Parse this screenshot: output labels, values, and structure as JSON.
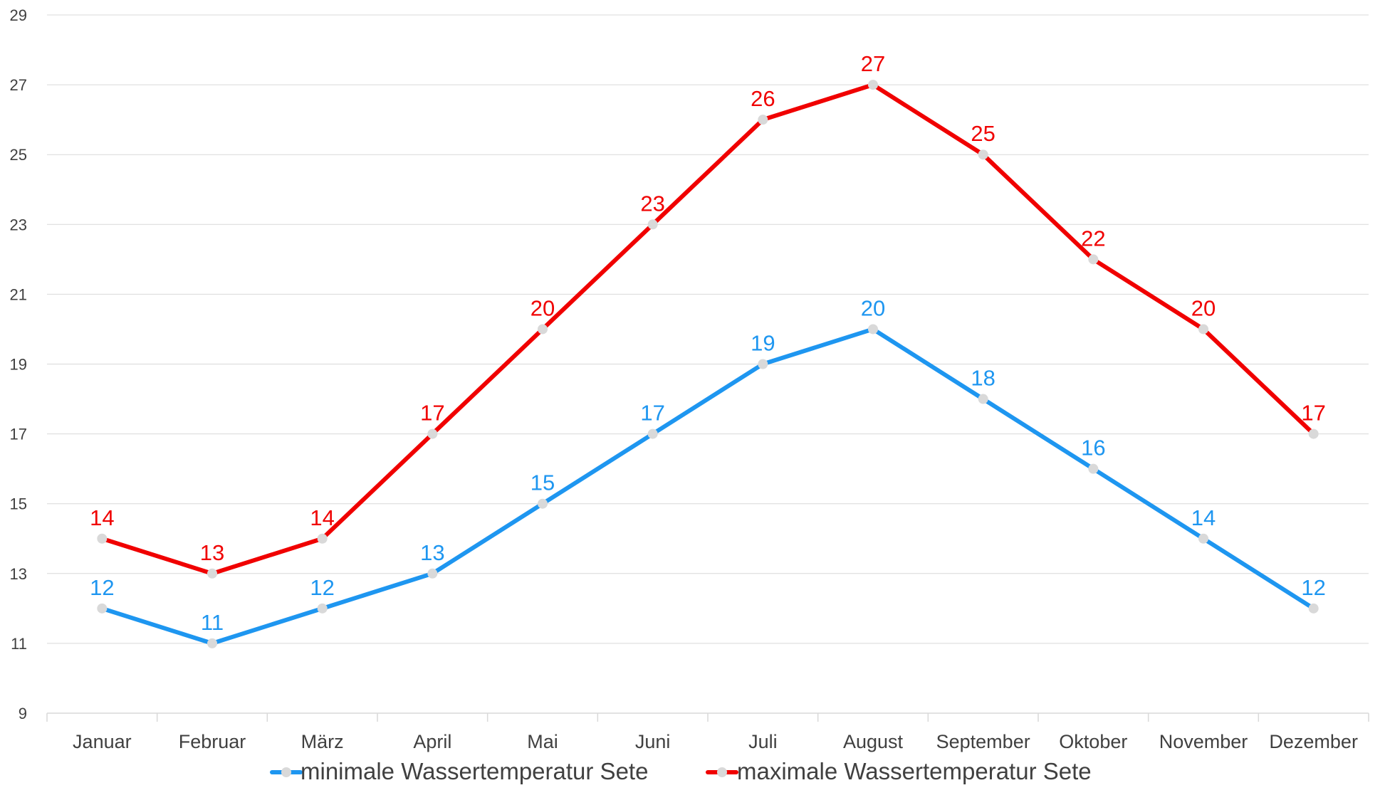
{
  "chart_data": {
    "type": "line",
    "title": "",
    "xlabel": "",
    "ylabel": "",
    "categories": [
      "Januar",
      "Februar",
      "März",
      "April",
      "Mai",
      "Juni",
      "Juli",
      "August",
      "September",
      "Oktober",
      "November",
      "Dezember"
    ],
    "ylim": [
      9,
      29
    ],
    "yticks": [
      9,
      11,
      13,
      15,
      17,
      19,
      21,
      23,
      25,
      27,
      29
    ],
    "grid": true,
    "legend_position": "bottom",
    "series": [
      {
        "name": "minimale Wassertemperatur Sete",
        "color": "#1E96F0",
        "values": [
          12,
          11,
          12,
          13,
          15,
          17,
          19,
          20,
          18,
          16,
          14,
          12
        ]
      },
      {
        "name": "maximale Wassertemperatur Sete",
        "color": "#F00000",
        "values": [
          14,
          13,
          14,
          17,
          20,
          23,
          26,
          27,
          25,
          22,
          20,
          17
        ]
      }
    ],
    "marker_color": "#D9D9D9",
    "gridline_color": "#D9D9D9"
  }
}
